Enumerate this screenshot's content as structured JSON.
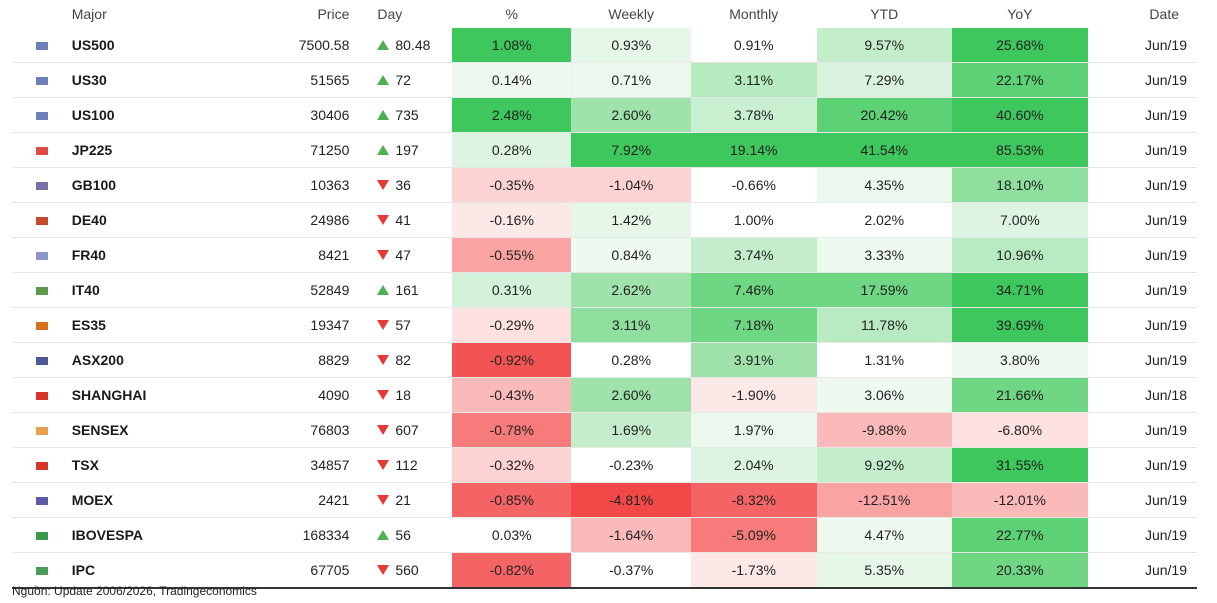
{
  "headers": {
    "major": "Major",
    "price": "Price",
    "day": "Day",
    "pct": "%",
    "weekly": "Weekly",
    "monthly": "Monthly",
    "ytd": "YTD",
    "yoy": "YoY",
    "date": "Date"
  },
  "colors": {
    "up_arrow": "#4cb050",
    "down_arrow": "#e53935"
  },
  "rows": [
    {
      "name": "US500",
      "flag_icon": "us-flag-icon",
      "flag_color": "#6b7fb8",
      "price": "7500.58",
      "dir": "up",
      "day": "80.48",
      "pct": "1.08%",
      "weekly": "0.93%",
      "monthly": "0.91%",
      "ytd": "9.57%",
      "yoy": "25.68%",
      "date": "Jun/19",
      "bg": [
        "#3ec75c",
        "#e6f7e9",
        "#ffffff",
        "#c4eecb",
        "#3ec75c"
      ]
    },
    {
      "name": "US30",
      "flag_icon": "us-flag-icon",
      "flag_color": "#6b7fb8",
      "price": "51565",
      "dir": "up",
      "day": "72",
      "pct": "0.14%",
      "weekly": "0.71%",
      "monthly": "3.11%",
      "ytd": "7.29%",
      "yoy": "22.17%",
      "date": "Jun/19",
      "bg": [
        "#eef9f0",
        "#eaf8ed",
        "#b6eabf",
        "#d9f3de",
        "#5dd274"
      ]
    },
    {
      "name": "US100",
      "flag_icon": "us-flag-icon",
      "flag_color": "#6b7fb8",
      "price": "30406",
      "dir": "up",
      "day": "735",
      "pct": "2.48%",
      "weekly": "2.60%",
      "monthly": "3.78%",
      "ytd": "20.42%",
      "yoy": "40.60%",
      "date": "Jun/19",
      "bg": [
        "#3ec75c",
        "#9fe3ab",
        "#c8efcf",
        "#5dd274",
        "#3ec75c"
      ]
    },
    {
      "name": "JP225",
      "flag_icon": "jp-flag-icon",
      "flag_color": "#e04848",
      "price": "71250",
      "dir": "up",
      "day": "197",
      "pct": "0.28%",
      "weekly": "7.92%",
      "monthly": "19.14%",
      "ytd": "41.54%",
      "yoy": "85.53%",
      "date": "Jun/19",
      "bg": [
        "#def4e2",
        "#3ec75c",
        "#3ec75c",
        "#3ec75c",
        "#3ec75c"
      ]
    },
    {
      "name": "GB100",
      "flag_icon": "gb-flag-icon",
      "flag_color": "#7a6fa8",
      "price": "10363",
      "dir": "down",
      "day": "36",
      "pct": "-0.35%",
      "weekly": "-1.04%",
      "monthly": "-0.66%",
      "ytd": "4.35%",
      "yoy": "18.10%",
      "date": "Jun/19",
      "bg": [
        "#fcd2d2",
        "#fcd2d2",
        "#ffffff",
        "#eaf8ed",
        "#8fdf9f"
      ]
    },
    {
      "name": "DE40",
      "flag_icon": "de-flag-icon",
      "flag_color": "#c44a2a",
      "price": "24986",
      "dir": "down",
      "day": "41",
      "pct": "-0.16%",
      "weekly": "1.42%",
      "monthly": "1.00%",
      "ytd": "2.02%",
      "yoy": "7.00%",
      "date": "Jun/19",
      "bg": [
        "#fde8e8",
        "#e6f7e9",
        "#ffffff",
        "#ffffff",
        "#def4e2"
      ]
    },
    {
      "name": "FR40",
      "flag_icon": "fr-flag-icon",
      "flag_color": "#8a96c8",
      "price": "8421",
      "dir": "down",
      "day": "47",
      "pct": "-0.55%",
      "weekly": "0.84%",
      "monthly": "3.74%",
      "ytd": "3.33%",
      "yoy": "10.96%",
      "date": "Jun/19",
      "bg": [
        "#f9a3a3",
        "#eef9f0",
        "#c4eecb",
        "#eef9f0",
        "#b8ebc1"
      ]
    },
    {
      "name": "IT40",
      "flag_icon": "it-flag-icon",
      "flag_color": "#5a9a4a",
      "price": "52849",
      "dir": "up",
      "day": "161",
      "pct": "0.31%",
      "weekly": "2.62%",
      "monthly": "7.46%",
      "ytd": "17.59%",
      "yoy": "34.71%",
      "date": "Jun/19",
      "bg": [
        "#d4f1d9",
        "#9fe3ab",
        "#6fd683",
        "#6fd683",
        "#3ec75c"
      ]
    },
    {
      "name": "ES35",
      "flag_icon": "es-flag-icon",
      "flag_color": "#d9701f",
      "price": "19347",
      "dir": "down",
      "day": "57",
      "pct": "-0.29%",
      "weekly": "3.11%",
      "monthly": "7.18%",
      "ytd": "11.78%",
      "yoy": "39.69%",
      "date": "Jun/19",
      "bg": [
        "#fde0e0",
        "#8fdf9f",
        "#6fd683",
        "#b8ebc1",
        "#3ec75c"
      ]
    },
    {
      "name": "ASX200",
      "flag_icon": "au-flag-icon",
      "flag_color": "#4a5a98",
      "price": "8829",
      "dir": "down",
      "day": "82",
      "pct": "-0.92%",
      "weekly": "0.28%",
      "monthly": "3.91%",
      "ytd": "1.31%",
      "yoy": "3.80%",
      "date": "Jun/19",
      "bg": [
        "#f25454",
        "#ffffff",
        "#9fe3ab",
        "#ffffff",
        "#eef9f0"
      ]
    },
    {
      "name": "SHANGHAI",
      "flag_icon": "cn-flag-icon",
      "flag_color": "#d9342a",
      "price": "4090",
      "dir": "down",
      "day": "18",
      "pct": "-0.43%",
      "weekly": "2.60%",
      "monthly": "-1.90%",
      "ytd": "3.06%",
      "yoy": "21.66%",
      "date": "Jun/18",
      "bg": [
        "#fbbaba",
        "#9fe3ab",
        "#fde8e8",
        "#eef9f0",
        "#6fd683"
      ]
    },
    {
      "name": "SENSEX",
      "flag_icon": "in-flag-icon",
      "flag_color": "#e8a050",
      "price": "76803",
      "dir": "down",
      "day": "607",
      "pct": "-0.78%",
      "weekly": "1.69%",
      "monthly": "1.97%",
      "ytd": "-9.88%",
      "yoy": "-6.80%",
      "date": "Jun/19",
      "bg": [
        "#f77b7b",
        "#c4eecb",
        "#eaf8ed",
        "#fbbaba",
        "#fde0e0"
      ]
    },
    {
      "name": "TSX",
      "flag_icon": "ca-flag-icon",
      "flag_color": "#d9342a",
      "price": "34857",
      "dir": "down",
      "day": "112",
      "pct": "-0.32%",
      "weekly": "-0.23%",
      "monthly": "2.04%",
      "ytd": "9.92%",
      "yoy": "31.55%",
      "date": "Jun/19",
      "bg": [
        "#fcd2d2",
        "#ffffff",
        "#def4e2",
        "#c4eecb",
        "#3ec75c"
      ]
    },
    {
      "name": "MOEX",
      "flag_icon": "ru-flag-icon",
      "flag_color": "#5a5aa8",
      "price": "2421",
      "dir": "down",
      "day": "21",
      "pct": "-0.85%",
      "weekly": "-4.81%",
      "monthly": "-8.32%",
      "ytd": "-12.51%",
      "yoy": "-12.01%",
      "date": "Jun/19",
      "bg": [
        "#f46464",
        "#f24848",
        "#f46464",
        "#f9a3a3",
        "#fbbaba"
      ]
    },
    {
      "name": "IBOVESPA",
      "flag_icon": "br-flag-icon",
      "flag_color": "#3a9a4a",
      "price": "168334",
      "dir": "up",
      "day": "56",
      "pct": "0.03%",
      "weekly": "-1.64%",
      "monthly": "-5.09%",
      "ytd": "4.47%",
      "yoy": "22.77%",
      "date": "Jun/19",
      "bg": [
        "#ffffff",
        "#fbbaba",
        "#f77b7b",
        "#eef9f0",
        "#5dd274"
      ]
    },
    {
      "name": "IPC",
      "flag_icon": "mx-flag-icon",
      "flag_color": "#4a9a5a",
      "price": "67705",
      "dir": "down",
      "day": "560",
      "pct": "-0.82%",
      "weekly": "-0.37%",
      "monthly": "-1.73%",
      "ytd": "5.35%",
      "yoy": "20.33%",
      "date": "Jun/19",
      "bg": [
        "#f46464",
        "#ffffff",
        "#fde8e8",
        "#e6f7e9",
        "#6fd683"
      ]
    }
  ],
  "source": "Nguồn: Update  2006/2026, Tradingeconomics"
}
